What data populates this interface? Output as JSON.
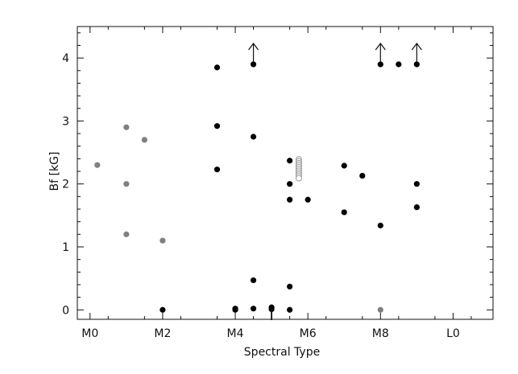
{
  "chart_data": {
    "type": "scatter",
    "title": "",
    "xlabel": "Spectral Type",
    "ylabel": "Bf [kG]",
    "xlim": [
      -0.35,
      11.1
    ],
    "ylim": [
      -0.15,
      4.5
    ],
    "x_ticks": [
      {
        "value": 0,
        "label": "M0"
      },
      {
        "value": 2,
        "label": "M2"
      },
      {
        "value": 4,
        "label": "M4"
      },
      {
        "value": 6,
        "label": "M6"
      },
      {
        "value": 8,
        "label": "M8"
      },
      {
        "value": 10,
        "label": "L0"
      }
    ],
    "y_ticks": [
      0,
      1,
      2,
      3,
      4
    ],
    "grid": false,
    "legend": "none",
    "colors": {
      "black_points": "#000000",
      "gray_points": "#808080",
      "hollow_stack": "#9a9a9a"
    },
    "series": [
      {
        "values": [
          {
            "x": 2.0,
            "y": 0.0
          },
          {
            "x": 3.5,
            "y": 3.85
          },
          {
            "x": 3.5,
            "y": 2.92
          },
          {
            "x": 3.5,
            "y": 2.23
          },
          {
            "x": 4.0,
            "y": 0.02
          },
          {
            "x": 4.0,
            "y": 0.0
          },
          {
            "x": 4.5,
            "y": 3.9
          },
          {
            "x": 4.5,
            "y": 2.75
          },
          {
            "x": 4.5,
            "y": 0.47
          },
          {
            "x": 4.5,
            "y": 0.02
          },
          {
            "x": 5.0,
            "y": 0.04
          },
          {
            "x": 5.0,
            "y": 0.01
          },
          {
            "x": 5.5,
            "y": 2.37
          },
          {
            "x": 5.5,
            "y": 2.0
          },
          {
            "x": 5.5,
            "y": 1.75
          },
          {
            "x": 5.5,
            "y": 0.37
          },
          {
            "x": 5.5,
            "y": 0.0
          },
          {
            "x": 6.0,
            "y": 1.75
          },
          {
            "x": 7.0,
            "y": 2.29
          },
          {
            "x": 7.0,
            "y": 1.55
          },
          {
            "x": 7.5,
            "y": 2.13
          },
          {
            "x": 8.0,
            "y": 3.9
          },
          {
            "x": 8.0,
            "y": 1.34
          },
          {
            "x": 8.5,
            "y": 3.9
          },
          {
            "x": 9.0,
            "y": 3.9
          },
          {
            "x": 9.0,
            "y": 2.0
          },
          {
            "x": 9.0,
            "y": 1.63
          }
        ]
      },
      {
        "values": [
          {
            "x": 0.2,
            "y": 2.3
          },
          {
            "x": 1.0,
            "y": 2.9
          },
          {
            "x": 1.0,
            "y": 2.0
          },
          {
            "x": 1.0,
            "y": 1.2
          },
          {
            "x": 1.5,
            "y": 2.7
          },
          {
            "x": 2.0,
            "y": 1.1
          },
          {
            "x": 8.0,
            "y": 0.0
          }
        ]
      },
      {
        "values": [
          {
            "x": 5.75,
            "y": 2.39
          },
          {
            "x": 5.75,
            "y": 2.36
          },
          {
            "x": 5.75,
            "y": 2.33
          },
          {
            "x": 5.75,
            "y": 2.3
          },
          {
            "x": 5.75,
            "y": 2.27
          },
          {
            "x": 5.75,
            "y": 2.24
          },
          {
            "x": 5.75,
            "y": 2.21
          },
          {
            "x": 5.75,
            "y": 2.18
          },
          {
            "x": 5.75,
            "y": 2.15
          },
          {
            "x": 5.75,
            "y": 2.12
          },
          {
            "x": 5.75,
            "y": 2.09
          }
        ]
      }
    ],
    "lower_limit_arrows": [
      {
        "x": 4.5,
        "y": 3.9
      },
      {
        "x": 8.0,
        "y": 3.9
      },
      {
        "x": 9.0,
        "y": 3.9
      }
    ],
    "upper_limit_markers": [
      {
        "x": 5.0,
        "y": 0.0
      }
    ]
  }
}
